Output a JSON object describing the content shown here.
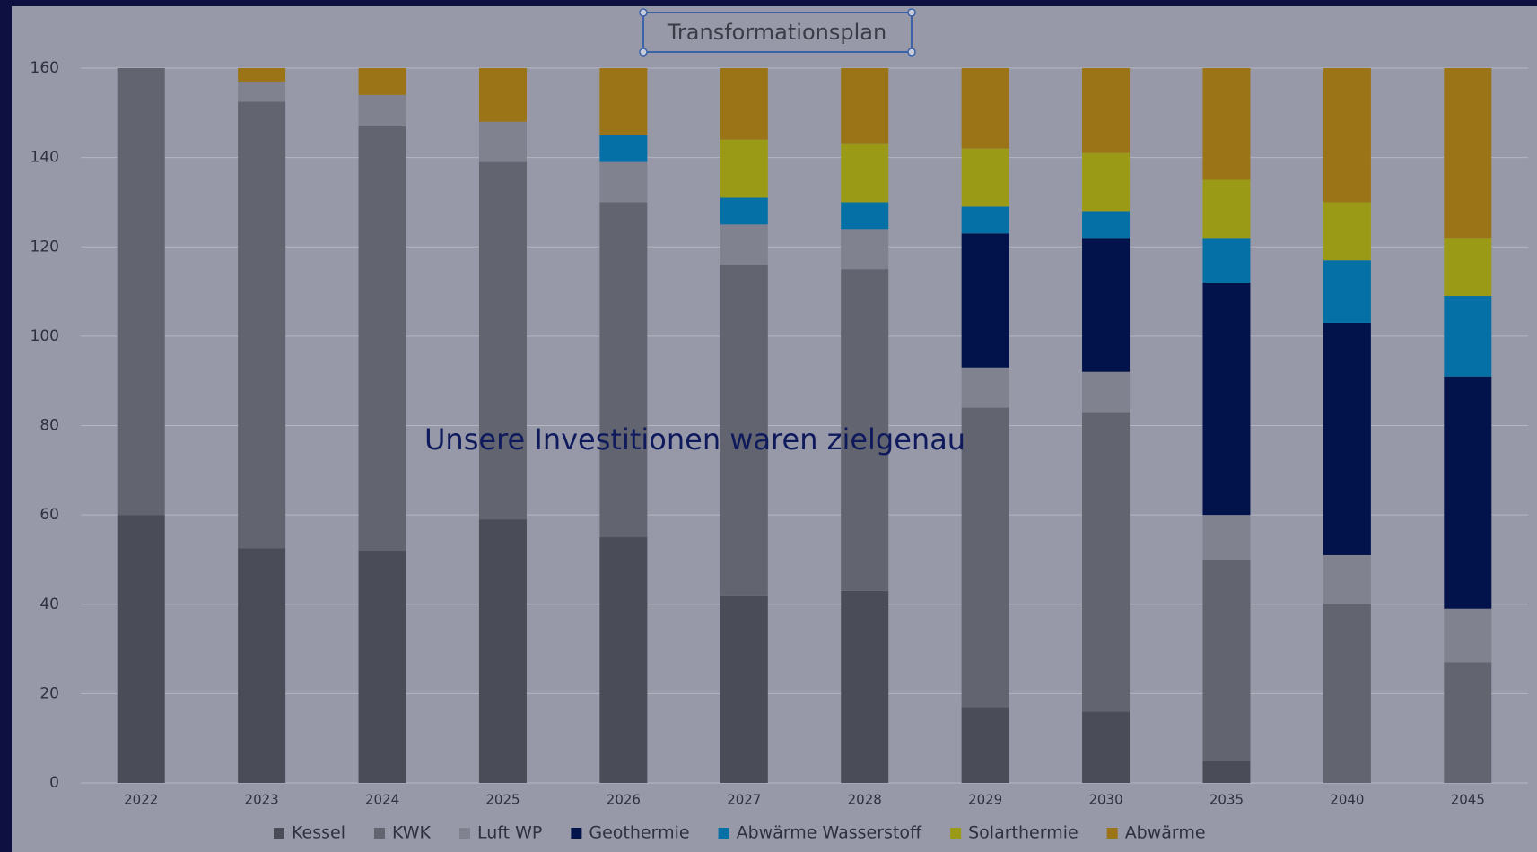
{
  "chart_data": {
    "type": "stacked_bar",
    "title": "Transformationsplan",
    "annotation": "Unsere Investitionen waren zielgenau",
    "categories": [
      "2022",
      "2023",
      "2024",
      "2025",
      "2026",
      "2027",
      "2028",
      "2029",
      "2030",
      "2035",
      "2040",
      "2045"
    ],
    "series": [
      {
        "name": "Kessel",
        "color": "#4a4c58",
        "values": [
          60,
          52.5,
          52,
          59,
          55,
          42,
          43,
          17,
          16,
          5,
          0,
          0
        ]
      },
      {
        "name": "KWK",
        "color": "#62646f",
        "values": [
          100,
          100,
          95,
          80,
          75,
          74,
          72,
          67,
          67,
          45,
          40,
          27
        ]
      },
      {
        "name": "Luft WP",
        "color": "#80828f",
        "values": [
          0,
          4.5,
          7,
          9,
          9,
          9,
          9,
          9,
          9,
          10,
          11,
          12
        ]
      },
      {
        "name": "Geothermie",
        "color": "#02134b",
        "values": [
          0,
          0,
          0,
          0,
          0,
          0,
          0,
          30,
          30,
          52,
          52,
          52
        ]
      },
      {
        "name": "Abwärme Wasserstoff",
        "color": "#0570a5",
        "values": [
          0,
          0,
          0,
          0,
          6,
          6,
          6,
          6,
          6,
          10,
          14,
          18
        ]
      },
      {
        "name": "Solarthermie",
        "color": "#9b9a17",
        "values": [
          0,
          0,
          0,
          0,
          0,
          13,
          13,
          13,
          13,
          13,
          13,
          13
        ]
      },
      {
        "name": "Abwärme",
        "color": "#9a7416",
        "values": [
          0,
          3,
          6,
          12,
          15,
          16,
          17,
          18,
          19,
          25,
          30,
          38
        ]
      }
    ],
    "ylim": [
      0,
      160
    ],
    "yticks": [
      0,
      20,
      40,
      60,
      80,
      100,
      120,
      140,
      160
    ],
    "grid": true,
    "legend": "bottom"
  }
}
